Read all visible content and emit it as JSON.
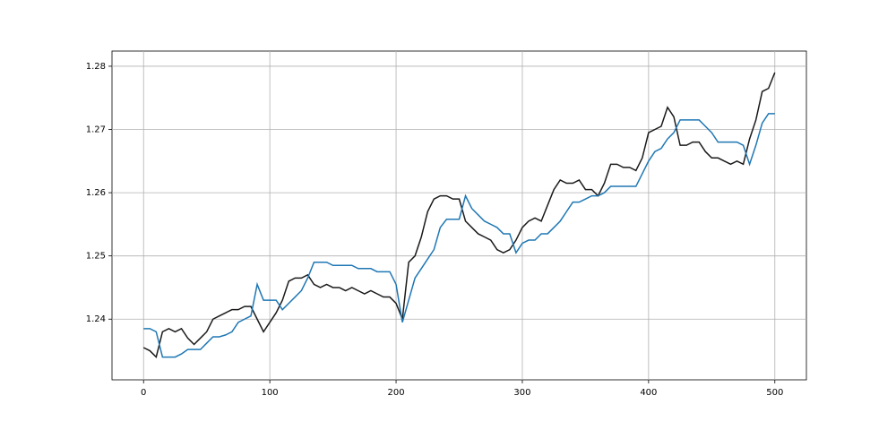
{
  "chart_data": {
    "type": "line",
    "x": [
      0,
      5,
      10,
      15,
      20,
      25,
      30,
      35,
      40,
      45,
      50,
      55,
      60,
      65,
      70,
      75,
      80,
      85,
      90,
      95,
      100,
      105,
      110,
      115,
      120,
      125,
      130,
      135,
      140,
      145,
      150,
      155,
      160,
      165,
      170,
      175,
      180,
      185,
      190,
      195,
      200,
      205,
      210,
      215,
      220,
      225,
      230,
      235,
      240,
      245,
      250,
      255,
      260,
      265,
      270,
      275,
      280,
      285,
      290,
      295,
      300,
      305,
      310,
      315,
      320,
      325,
      330,
      335,
      340,
      345,
      350,
      355,
      360,
      365,
      370,
      375,
      380,
      385,
      390,
      395,
      400,
      405,
      410,
      415,
      420,
      425,
      430,
      435,
      440,
      445,
      450,
      455,
      460,
      465,
      470,
      475,
      480,
      485,
      490,
      495,
      500
    ],
    "series": [
      {
        "color": "#1a1a1a",
        "values": [
          1.2355,
          1.235,
          1.234,
          1.238,
          1.2385,
          1.238,
          1.2385,
          1.237,
          1.236,
          1.237,
          1.238,
          1.24,
          1.2405,
          1.241,
          1.2415,
          1.2415,
          1.242,
          1.242,
          1.24,
          1.238,
          1.2395,
          1.241,
          1.243,
          1.246,
          1.2465,
          1.2465,
          1.247,
          1.2455,
          1.245,
          1.2455,
          1.245,
          1.245,
          1.2445,
          1.245,
          1.2445,
          1.244,
          1.2445,
          1.244,
          1.2435,
          1.2435,
          1.2425,
          1.24,
          1.249,
          1.25,
          1.253,
          1.257,
          1.259,
          1.2595,
          1.2595,
          1.259,
          1.259,
          1.2555,
          1.2545,
          1.2535,
          1.253,
          1.2525,
          1.251,
          1.2505,
          1.251,
          1.2525,
          1.2545,
          1.2555,
          1.256,
          1.2555,
          1.258,
          1.2605,
          1.262,
          1.2615,
          1.2615,
          1.262,
          1.2605,
          1.2605,
          1.2595,
          1.2615,
          1.2645,
          1.2645,
          1.264,
          1.264,
          1.2635,
          1.2655,
          1.2695,
          1.27,
          1.2705,
          1.2735,
          1.272,
          1.2675,
          1.2675,
          1.268,
          1.268,
          1.2665,
          1.2655,
          1.2655,
          1.265,
          1.2645,
          1.265,
          1.2645,
          1.2685,
          1.2715,
          1.276,
          1.2765,
          1.279
        ]
      },
      {
        "color": "#1f77b4",
        "values": [
          1.2385,
          1.2385,
          1.238,
          1.234,
          1.234,
          1.234,
          1.2345,
          1.2352,
          1.2352,
          1.2352,
          1.2362,
          1.2372,
          1.2372,
          1.2375,
          1.238,
          1.2395,
          1.24,
          1.2405,
          1.2455,
          1.243,
          1.243,
          1.243,
          1.2415,
          1.2425,
          1.2435,
          1.2445,
          1.2465,
          1.249,
          1.249,
          1.249,
          1.2485,
          1.2485,
          1.2485,
          1.2485,
          1.248,
          1.248,
          1.248,
          1.2475,
          1.2475,
          1.2475,
          1.2455,
          1.2395,
          1.243,
          1.2465,
          1.248,
          1.2495,
          1.251,
          1.2545,
          1.2558,
          1.2558,
          1.2558,
          1.2595,
          1.2575,
          1.2565,
          1.2555,
          1.255,
          1.2545,
          1.2535,
          1.2535,
          1.2505,
          1.252,
          1.2525,
          1.2525,
          1.2535,
          1.2535,
          1.2545,
          1.2555,
          1.257,
          1.2585,
          1.2585,
          1.259,
          1.2595,
          1.2595,
          1.26,
          1.261,
          1.261,
          1.261,
          1.261,
          1.261,
          1.263,
          1.265,
          1.2665,
          1.267,
          1.2685,
          1.2695,
          1.2715,
          1.2715,
          1.2715,
          1.2715,
          1.2705,
          1.2695,
          1.268,
          1.268,
          1.268,
          1.268,
          1.2675,
          1.2645,
          1.2675,
          1.271,
          1.2725,
          1.2725
        ]
      }
    ],
    "xlim": [
      -25,
      525
    ],
    "xticks": [
      0,
      100,
      200,
      300,
      400,
      500
    ],
    "ylim": [
      1.2304,
      1.2824
    ],
    "yticks": [
      1.24,
      1.25,
      1.26,
      1.27,
      1.28
    ],
    "grid": true
  }
}
